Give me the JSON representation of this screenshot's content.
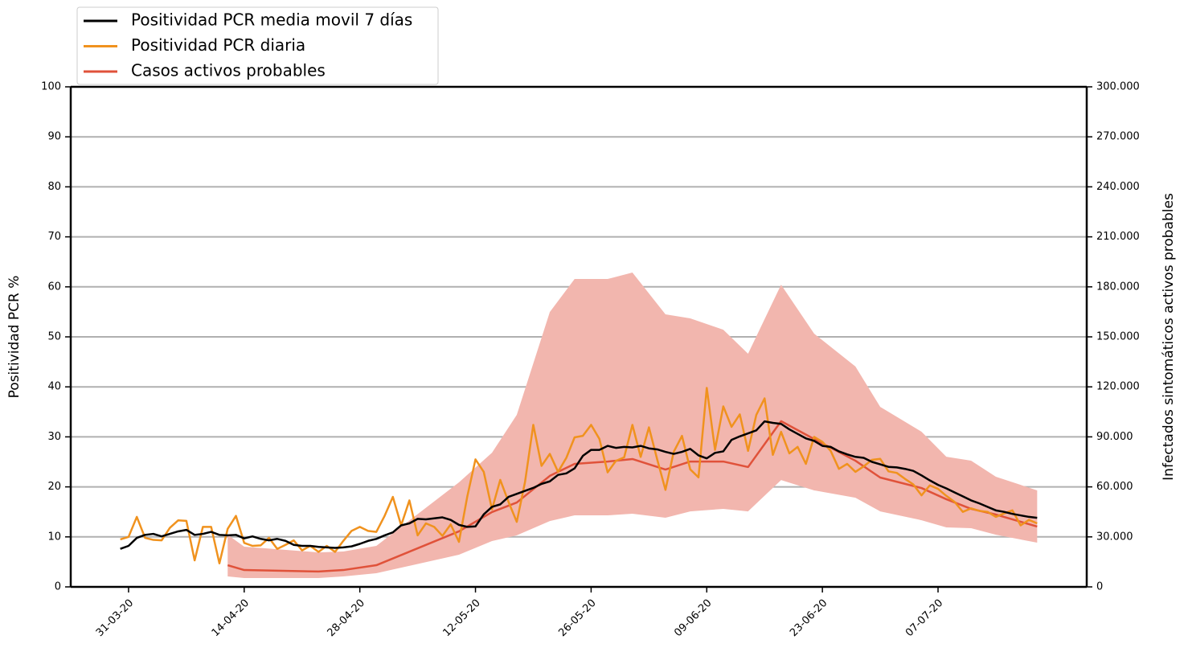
{
  "chart_data": {
    "type": "line",
    "ylabel": "Positividad PCR %",
    "y2label": "Infectados sintomáticos activos probables",
    "x": [
      "2020-03-30",
      "2020-03-31",
      "2020-04-01",
      "2020-04-02",
      "2020-04-03",
      "2020-04-04",
      "2020-04-05",
      "2020-04-06",
      "2020-04-07",
      "2020-04-08",
      "2020-04-09",
      "2020-04-10",
      "2020-04-11",
      "2020-04-12",
      "2020-04-13",
      "2020-04-14",
      "2020-04-15",
      "2020-04-16",
      "2020-04-17",
      "2020-04-18",
      "2020-04-19",
      "2020-04-20",
      "2020-04-21",
      "2020-04-22",
      "2020-04-23",
      "2020-04-24",
      "2020-04-25",
      "2020-04-26",
      "2020-04-27",
      "2020-04-28",
      "2020-04-29",
      "2020-04-30",
      "2020-05-01",
      "2020-05-02",
      "2020-05-03",
      "2020-05-04",
      "2020-05-05",
      "2020-05-06",
      "2020-05-07",
      "2020-05-08",
      "2020-05-09",
      "2020-05-10",
      "2020-05-11",
      "2020-05-12",
      "2020-05-13",
      "2020-05-14",
      "2020-05-15",
      "2020-05-16",
      "2020-05-17",
      "2020-05-18",
      "2020-05-19",
      "2020-05-20",
      "2020-05-21",
      "2020-05-22",
      "2020-05-23",
      "2020-05-24",
      "2020-05-25",
      "2020-05-26",
      "2020-05-27",
      "2020-05-28",
      "2020-05-29",
      "2020-05-30",
      "2020-05-31",
      "2020-06-01",
      "2020-06-02",
      "2020-06-03",
      "2020-06-04",
      "2020-06-05",
      "2020-06-06",
      "2020-06-07",
      "2020-06-08",
      "2020-06-09",
      "2020-06-10",
      "2020-06-11",
      "2020-06-12",
      "2020-06-13",
      "2020-06-14",
      "2020-06-15",
      "2020-06-16",
      "2020-06-17",
      "2020-06-18",
      "2020-06-19",
      "2020-06-20",
      "2020-06-21",
      "2020-06-22",
      "2020-06-23",
      "2020-06-24",
      "2020-06-25",
      "2020-06-26",
      "2020-06-27",
      "2020-06-28",
      "2020-06-29",
      "2020-06-30",
      "2020-07-01",
      "2020-07-02",
      "2020-07-03",
      "2020-07-04",
      "2020-07-05",
      "2020-07-06",
      "2020-07-07",
      "2020-07-08",
      "2020-07-09",
      "2020-07-10",
      "2020-07-11",
      "2020-07-12",
      "2020-07-13",
      "2020-07-14",
      "2020-07-15",
      "2020-07-16",
      "2020-07-17",
      "2020-07-18",
      "2020-07-19"
    ],
    "series": [
      {
        "name": "Positividad PCR media movil 7 días",
        "color": "#000000",
        "values": [
          7.6,
          8.2,
          9.8,
          10.4,
          10.6,
          10.1,
          10.6,
          11.1,
          11.4,
          10.4,
          10.6,
          11,
          10.4,
          10.3,
          10.4,
          9.7,
          10.1,
          9.6,
          9.3,
          9.6,
          9.2,
          8.4,
          8.2,
          8.2,
          8,
          7.9,
          7.8,
          7.9,
          8.1,
          8.6,
          9.2,
          9.6,
          10.3,
          10.9,
          12.3,
          12.7,
          13.6,
          13.5,
          13.7,
          13.9,
          13.4,
          12.4,
          12,
          12.1,
          14.5,
          16,
          16.5,
          18,
          18.6,
          19.2,
          19.8,
          20.6,
          21.1,
          22.4,
          22.7,
          23.7,
          26.2,
          27.4,
          27.4,
          28.2,
          27.8,
          28,
          27.9,
          28.2,
          27.7,
          27.5,
          27,
          26.6,
          27,
          27.6,
          26.3,
          25.7,
          26.8,
          27.1,
          29.4,
          30.1,
          30.7,
          31.3,
          33.1,
          32.8,
          32.6,
          31.5,
          30.6,
          29.7,
          29.2,
          28.2,
          28,
          27.1,
          26.5,
          26,
          25.8,
          25,
          24.5,
          24,
          23.9,
          23.6,
          23.2,
          22.3,
          21.3,
          20.4,
          19.7,
          18.9,
          18.1,
          17.3,
          16.7,
          16,
          15.3,
          15,
          14.6,
          14.3,
          14,
          13.8
        ]
      },
      {
        "name": "Positividad PCR diaria",
        "color": "#f0921e",
        "values": [
          9.5,
          10,
          14,
          9.8,
          9.4,
          9.3,
          11.8,
          13.3,
          13.2,
          5.3,
          12,
          12,
          4.7,
          11.6,
          14.2,
          8.8,
          8.2,
          8.3,
          9.8,
          7.6,
          8.4,
          9.3,
          7.3,
          8.2,
          7,
          8.2,
          7,
          9.2,
          11.2,
          12,
          11.2,
          11,
          14.2,
          18,
          12.3,
          17.3,
          10.3,
          12.7,
          12,
          10.2,
          12.5,
          9,
          18,
          25.5,
          23,
          15.5,
          21.4,
          17,
          13,
          21,
          32.4,
          24.2,
          26.6,
          23,
          25.8,
          29.9,
          30.2,
          32.4,
          29.6,
          22.9,
          25.2,
          25.9,
          32.4,
          26,
          31.9,
          25.5,
          19.4,
          27,
          30.2,
          23.5,
          21.9,
          39.8,
          27.4,
          36.1,
          32,
          34.5,
          27.2,
          34.4,
          37.7,
          26.4,
          31,
          26.7,
          28,
          24.6,
          30,
          29,
          27.2,
          23.6,
          24.6,
          23,
          24.1,
          25.4,
          25.6,
          23.1,
          22.8,
          21.6,
          20.5,
          18.3,
          20.3,
          19.6,
          18.2,
          17,
          15,
          15.7,
          15.2,
          15,
          14,
          14.7,
          15.3,
          12.3,
          13.4,
          12.7
        ]
      },
      {
        "name": "Casos activos probables",
        "color": "#e0523a",
        "axis": "y2",
        "x": [
          "2020-04-12",
          "2020-04-14",
          "2020-04-23",
          "2020-04-26",
          "2020-04-30",
          "2020-05-10",
          "2020-05-14",
          "2020-05-17",
          "2020-05-21",
          "2020-05-24",
          "2020-05-28",
          "2020-05-31",
          "2020-06-04",
          "2020-06-07",
          "2020-06-11",
          "2020-06-14",
          "2020-06-18",
          "2020-06-22",
          "2020-06-27",
          "2020-06-30",
          "2020-07-05",
          "2020-07-08",
          "2020-07-11",
          "2020-07-14",
          "2020-07-19"
        ],
        "values": [
          13000,
          10100,
          9200,
          10100,
          13000,
          33300,
          44900,
          50600,
          66600,
          73800,
          75200,
          76700,
          70400,
          75200,
          75200,
          71900,
          99400,
          88700,
          75700,
          65600,
          59300,
          52600,
          46800,
          43400,
          36200
        ],
        "band": {
          "color": "#f2b6ae",
          "lower": [
            6300,
            5300,
            5300,
            6300,
            8200,
            19300,
            27500,
            30900,
            39500,
            42900,
            42900,
            43900,
            41500,
            45300,
            46800,
            45300,
            64100,
            57900,
            53500,
            45300,
            40000,
            35700,
            35200,
            31300,
            26500
          ],
          "upper": [
            31300,
            24100,
            20700,
            21200,
            24600,
            62700,
            80500,
            103200,
            164900,
            184700,
            184700,
            188600,
            163500,
            161100,
            154300,
            139900,
            181300,
            151900,
            132200,
            108000,
            93100,
            78100,
            75700,
            66100,
            57900
          ]
        }
      }
    ],
    "xlim": [
      "2020-03-24",
      "2020-07-25"
    ],
    "xticks": [
      {
        "value": "2020-03-31",
        "label": "31-03-20"
      },
      {
        "value": "2020-04-14",
        "label": "14-04-20"
      },
      {
        "value": "2020-04-28",
        "label": "28-04-20"
      },
      {
        "value": "2020-05-12",
        "label": "12-05-20"
      },
      {
        "value": "2020-05-26",
        "label": "26-05-20"
      },
      {
        "value": "2020-06-09",
        "label": "09-06-20"
      },
      {
        "value": "2020-06-23",
        "label": "23-06-20"
      },
      {
        "value": "2020-07-07",
        "label": "07-07-20"
      }
    ],
    "ylim": [
      0,
      100
    ],
    "yticks": [
      0,
      10,
      20,
      30,
      40,
      50,
      60,
      70,
      80,
      90,
      100
    ],
    "y2lim": [
      0,
      300000
    ],
    "y2ticks": [
      0,
      {
        "value": 30000,
        "label": "30.000"
      },
      {
        "value": 60000,
        "label": "60.000"
      },
      {
        "value": 90000,
        "label": "90.000"
      },
      {
        "value": 120000,
        "label": "120.000"
      },
      {
        "value": 150000,
        "label": "150.000"
      },
      {
        "value": 180000,
        "label": "180.000"
      },
      {
        "value": 210000,
        "label": "210.000"
      },
      {
        "value": 240000,
        "label": "240.000"
      },
      {
        "value": 270000,
        "label": "270.000"
      },
      {
        "value": 300000,
        "label": "300.000"
      }
    ],
    "grid": true,
    "legend": "upper left"
  }
}
